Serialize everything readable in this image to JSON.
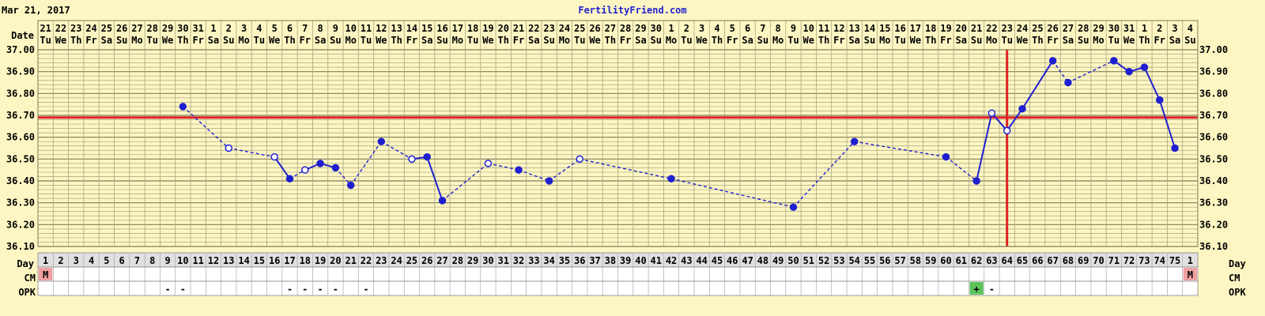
{
  "header": {
    "date_text": "Mar 21, 2017",
    "site_text": "FertilityFriend.com"
  },
  "chart_data": {
    "type": "line",
    "title": "",
    "row_labels": {
      "date": "Date",
      "day": "Day",
      "cm": "CM",
      "opk": "OPK"
    },
    "date_numbers": [
      "21",
      "22",
      "23",
      "24",
      "25",
      "26",
      "27",
      "28",
      "29",
      "30",
      "31",
      "1",
      "2",
      "3",
      "4",
      "5",
      "6",
      "7",
      "8",
      "9",
      "10",
      "11",
      "12",
      "13",
      "14",
      "15",
      "16",
      "17",
      "18",
      "19",
      "20",
      "21",
      "22",
      "23",
      "24",
      "25",
      "26",
      "27",
      "28",
      "29",
      "30",
      "1",
      "2",
      "3",
      "4",
      "5",
      "6",
      "7",
      "8",
      "9",
      "10",
      "11",
      "12",
      "13",
      "14",
      "15",
      "16",
      "17",
      "18",
      "19",
      "20",
      "21",
      "22",
      "23",
      "24",
      "25",
      "26",
      "27",
      "28",
      "29",
      "30",
      "31",
      "1",
      "2",
      "3",
      "4"
    ],
    "weekdays": [
      "Tu",
      "We",
      "Th",
      "Fr",
      "Sa",
      "Su",
      "Mo",
      "Tu",
      "We",
      "Th",
      "Fr",
      "Sa",
      "Su",
      "Mo",
      "Tu",
      "We",
      "Th",
      "Fr",
      "Sa",
      "Su",
      "Mo",
      "Tu",
      "We",
      "Th",
      "Fr",
      "Sa",
      "Su",
      "Mo",
      "Tu",
      "We",
      "Th",
      "Fr",
      "Sa",
      "Su",
      "Mo",
      "Tu",
      "We",
      "Th",
      "Fr",
      "Sa",
      "Su",
      "Mo",
      "Tu",
      "We",
      "Th",
      "Fr",
      "Sa",
      "Su",
      "Mo",
      "Tu",
      "We",
      "Th",
      "Fr",
      "Sa",
      "Su",
      "Mo",
      "Tu",
      "We",
      "Th",
      "Fr",
      "Sa",
      "Su",
      "Mo",
      "Tu",
      "We",
      "Th",
      "Fr",
      "Sa",
      "Su",
      "Mo",
      "Tu",
      "We",
      "Th",
      "Fr",
      "Sa",
      "Su"
    ],
    "cycle_days": [
      "1",
      "2",
      "3",
      "4",
      "5",
      "6",
      "7",
      "8",
      "9",
      "10",
      "11",
      "12",
      "13",
      "14",
      "15",
      "16",
      "17",
      "18",
      "19",
      "20",
      "21",
      "22",
      "23",
      "24",
      "25",
      "26",
      "27",
      "28",
      "29",
      "30",
      "31",
      "32",
      "33",
      "34",
      "35",
      "36",
      "37",
      "38",
      "39",
      "40",
      "41",
      "42",
      "43",
      "44",
      "45",
      "46",
      "47",
      "48",
      "49",
      "50",
      "51",
      "52",
      "53",
      "54",
      "55",
      "56",
      "57",
      "58",
      "59",
      "60",
      "61",
      "62",
      "63",
      "64",
      "65",
      "66",
      "67",
      "68",
      "69",
      "70",
      "71",
      "72",
      "73",
      "74",
      "75",
      "1"
    ],
    "y_ticks": [
      "37.00",
      "36.90",
      "36.80",
      "36.70",
      "36.60",
      "36.50",
      "36.40",
      "36.30",
      "36.20",
      "36.10"
    ],
    "ylim": [
      36.1,
      37.0
    ],
    "coverline": 36.69,
    "ovulation_day": 64,
    "temperatures": [
      {
        "day": 10,
        "temp": 36.74,
        "open": false
      },
      {
        "day": 13,
        "temp": 36.55,
        "open": true
      },
      {
        "day": 16,
        "temp": 36.51,
        "open": true
      },
      {
        "day": 17,
        "temp": 36.41,
        "open": false
      },
      {
        "day": 18,
        "temp": 36.45,
        "open": true
      },
      {
        "day": 19,
        "temp": 36.48,
        "open": false
      },
      {
        "day": 20,
        "temp": 36.46,
        "open": false
      },
      {
        "day": 21,
        "temp": 36.38,
        "open": false
      },
      {
        "day": 23,
        "temp": 36.58,
        "open": false
      },
      {
        "day": 25,
        "temp": 36.5,
        "open": true
      },
      {
        "day": 26,
        "temp": 36.51,
        "open": false
      },
      {
        "day": 27,
        "temp": 36.31,
        "open": false
      },
      {
        "day": 30,
        "temp": 36.48,
        "open": true
      },
      {
        "day": 32,
        "temp": 36.45,
        "open": false
      },
      {
        "day": 34,
        "temp": 36.4,
        "open": false
      },
      {
        "day": 36,
        "temp": 36.5,
        "open": true
      },
      {
        "day": 42,
        "temp": 36.41,
        "open": false
      },
      {
        "day": 50,
        "temp": 36.28,
        "open": false
      },
      {
        "day": 54,
        "temp": 36.58,
        "open": false
      },
      {
        "day": 60,
        "temp": 36.51,
        "open": false
      },
      {
        "day": 62,
        "temp": 36.4,
        "open": false
      },
      {
        "day": 63,
        "temp": 36.71,
        "open": true
      },
      {
        "day": 64,
        "temp": 36.63,
        "open": true
      },
      {
        "day": 65,
        "temp": 36.73,
        "open": false
      },
      {
        "day": 67,
        "temp": 36.95,
        "open": false
      },
      {
        "day": 68,
        "temp": 36.85,
        "open": false
      },
      {
        "day": 71,
        "temp": 36.95,
        "open": false
      },
      {
        "day": 72,
        "temp": 36.9,
        "open": false
      },
      {
        "day": 73,
        "temp": 36.92,
        "open": false
      },
      {
        "day": 74,
        "temp": 36.77,
        "open": false
      },
      {
        "day": 75,
        "temp": 36.55,
        "open": false
      }
    ],
    "dashed_segments_ending_at_day": [
      13,
      16,
      18,
      21,
      23,
      25,
      30,
      32,
      34,
      36,
      42,
      50,
      54,
      60,
      62,
      68,
      71
    ],
    "cm": [
      {
        "col": 1,
        "text": "M"
      },
      {
        "col": 76,
        "text": "M"
      }
    ],
    "opk": [
      {
        "col": 9,
        "text": "-"
      },
      {
        "col": 10,
        "text": "-"
      },
      {
        "col": 17,
        "text": "-"
      },
      {
        "col": 18,
        "text": "-"
      },
      {
        "col": 19,
        "text": "-"
      },
      {
        "col": 20,
        "text": "-"
      },
      {
        "col": 22,
        "text": "-"
      },
      {
        "col": 62,
        "text": "+"
      },
      {
        "col": 63,
        "text": "-"
      }
    ],
    "colors": {
      "background": "#fdf6c3",
      "grid": "#a9a57e",
      "line": "#1f1fd1",
      "red": "#dd2222",
      "menses": "#f0a0a0",
      "opk_positive": "#5cc45c",
      "row_bg": "#ffffff",
      "daybar": "#e0e0e0"
    }
  }
}
